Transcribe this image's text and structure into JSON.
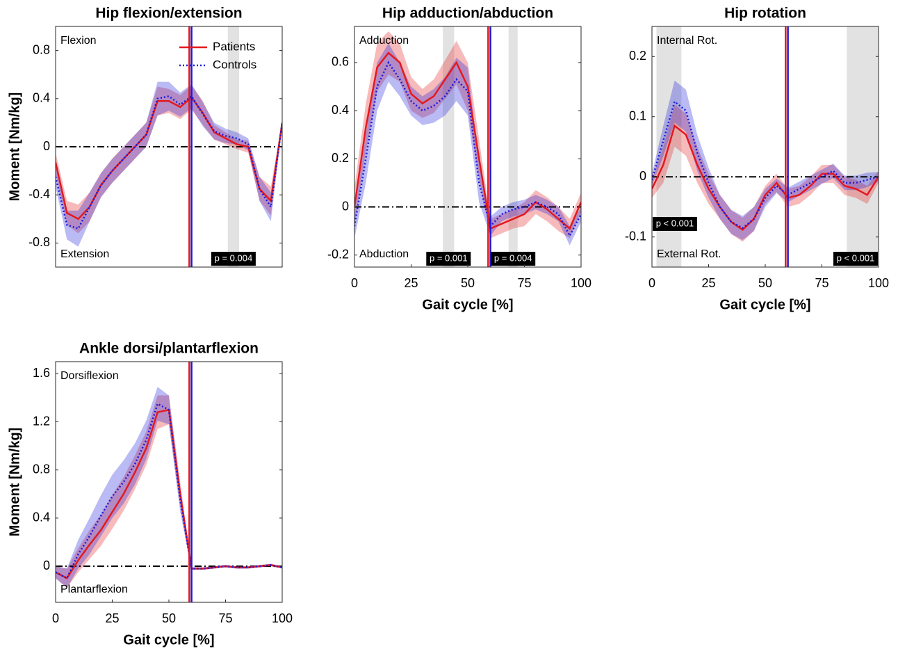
{
  "chart_data": [
    {
      "type": "line",
      "title": "Hip flexion/extension",
      "ylabel": "Moment [Nm/kg]",
      "annotations": {
        "top": "Flexion",
        "bottom": "Extension"
      },
      "xlim": [
        0,
        100
      ],
      "ylim": [
        -1,
        1
      ],
      "yticks": [
        0.8,
        0.4,
        0,
        -0.4,
        -0.8
      ],
      "hline": 0,
      "legend": "upper right",
      "x": [
        0,
        5,
        10,
        15,
        20,
        25,
        30,
        35,
        40,
        45,
        50,
        55,
        60,
        65,
        70,
        75,
        80,
        85,
        90,
        95,
        100
      ],
      "series": [
        {
          "name": "Patients",
          "color": "#e3191f",
          "style": "solid",
          "values": [
            -0.13,
            -0.55,
            -0.6,
            -0.5,
            -0.32,
            -0.2,
            -0.1,
            0.0,
            0.1,
            0.38,
            0.38,
            0.33,
            0.41,
            0.28,
            0.12,
            0.07,
            0.02,
            0.0,
            -0.35,
            -0.45,
            0.2
          ],
          "sd": [
            0.08,
            0.1,
            0.12,
            0.12,
            0.1,
            0.1,
            0.1,
            0.1,
            0.1,
            0.12,
            0.1,
            0.1,
            0.1,
            0.1,
            0.06,
            0.05,
            0.04,
            0.05,
            0.1,
            0.12,
            0.02
          ]
        },
        {
          "name": "Controls",
          "color": "#1a1ad9",
          "style": "dotted",
          "values": [
            -0.25,
            -0.65,
            -0.68,
            -0.5,
            -0.32,
            -0.2,
            -0.1,
            0.0,
            0.1,
            0.4,
            0.42,
            0.35,
            0.42,
            0.27,
            0.13,
            0.09,
            0.07,
            0.02,
            -0.35,
            -0.5,
            0.2
          ],
          "sd": [
            0.08,
            0.12,
            0.15,
            0.12,
            0.1,
            0.1,
            0.1,
            0.1,
            0.1,
            0.14,
            0.12,
            0.1,
            0.1,
            0.1,
            0.07,
            0.06,
            0.05,
            0.05,
            0.1,
            0.12,
            0.02
          ]
        }
      ],
      "vlines": [
        {
          "value": 59,
          "color": "#e3191f"
        },
        {
          "value": 60,
          "color": "#1a1ad9"
        }
      ],
      "sig_regions": [
        {
          "x": [
            76,
            81
          ],
          "label": "p = 0.004"
        }
      ]
    },
    {
      "type": "line",
      "title": "Hip adduction/abduction",
      "xlabel": "Gait cycle [%]",
      "annotations": {
        "top": "Adduction",
        "bottom": "Abduction"
      },
      "xlim": [
        0,
        100
      ],
      "xticks": [
        0,
        25,
        50,
        75,
        100
      ],
      "ylim": [
        -0.25,
        0.75
      ],
      "yticks": [
        0.6,
        0.4,
        0.2,
        0,
        -0.2
      ],
      "hline": 0,
      "x": [
        0,
        5,
        10,
        15,
        20,
        25,
        30,
        35,
        40,
        45,
        50,
        55,
        60,
        65,
        70,
        75,
        80,
        85,
        90,
        95,
        100
      ],
      "series": [
        {
          "color": "#e3191f",
          "style": "solid",
          "values": [
            0.0,
            0.33,
            0.58,
            0.64,
            0.6,
            0.47,
            0.43,
            0.46,
            0.53,
            0.6,
            0.5,
            0.2,
            -0.09,
            -0.07,
            -0.05,
            -0.03,
            0.02,
            -0.01,
            -0.05,
            -0.09,
            0.02
          ],
          "sd": [
            0.08,
            0.1,
            0.1,
            0.09,
            0.08,
            0.07,
            0.06,
            0.07,
            0.08,
            0.09,
            0.1,
            0.08,
            0.04,
            0.04,
            0.04,
            0.05,
            0.05,
            0.05,
            0.05,
            0.04,
            0.04
          ]
        },
        {
          "color": "#1a1ad9",
          "style": "dotted",
          "values": [
            -0.08,
            0.2,
            0.5,
            0.6,
            0.53,
            0.44,
            0.4,
            0.42,
            0.46,
            0.53,
            0.48,
            0.1,
            -0.08,
            -0.03,
            -0.01,
            0.0,
            0.02,
            0.0,
            -0.03,
            -0.12,
            -0.03
          ],
          "sd": [
            0.05,
            0.1,
            0.1,
            0.08,
            0.07,
            0.06,
            0.06,
            0.07,
            0.08,
            0.09,
            0.1,
            0.08,
            0.04,
            0.03,
            0.03,
            0.03,
            0.03,
            0.03,
            0.03,
            0.04,
            0.03
          ]
        }
      ],
      "vlines": [
        {
          "value": 59,
          "color": "#e3191f"
        },
        {
          "value": 60,
          "color": "#1a1ad9"
        }
      ],
      "sig_regions": [
        {
          "x": [
            39,
            44
          ],
          "label": "p = 0.001"
        },
        {
          "x": [
            68,
            72
          ],
          "label": "p = 0.004"
        }
      ]
    },
    {
      "type": "line",
      "title": "Hip rotation",
      "xlabel": "Gait cycle [%]",
      "annotations": {
        "top": "Internal Rot.",
        "bottom": "External Rot."
      },
      "xlim": [
        0,
        100
      ],
      "xticks": [
        0,
        25,
        50,
        75,
        100
      ],
      "ylim": [
        -0.15,
        0.25
      ],
      "yticks": [
        0.2,
        0.1,
        0,
        -0.1
      ],
      "hline": 0,
      "x": [
        0,
        5,
        10,
        15,
        20,
        25,
        30,
        35,
        40,
        45,
        50,
        55,
        60,
        65,
        70,
        75,
        80,
        85,
        90,
        95,
        100
      ],
      "series": [
        {
          "color": "#e3191f",
          "style": "solid",
          "values": [
            -0.02,
            0.02,
            0.085,
            0.07,
            0.02,
            -0.02,
            -0.05,
            -0.075,
            -0.088,
            -0.07,
            -0.03,
            -0.01,
            -0.035,
            -0.03,
            -0.015,
            0.005,
            0.005,
            -0.015,
            -0.02,
            -0.03,
            0.0
          ],
          "sd": [
            0.015,
            0.03,
            0.035,
            0.035,
            0.03,
            0.025,
            0.02,
            0.02,
            0.02,
            0.02,
            0.015,
            0.015,
            0.015,
            0.015,
            0.015,
            0.015,
            0.015,
            0.015,
            0.015,
            0.015,
            0.01
          ]
        },
        {
          "color": "#1a1ad9",
          "style": "dotted",
          "values": [
            -0.005,
            0.06,
            0.125,
            0.11,
            0.04,
            -0.01,
            -0.05,
            -0.075,
            -0.085,
            -0.07,
            -0.035,
            -0.015,
            -0.03,
            -0.02,
            -0.01,
            0.0,
            0.01,
            -0.01,
            -0.01,
            -0.005,
            0.0
          ],
          "sd": [
            0.01,
            0.025,
            0.035,
            0.035,
            0.03,
            0.025,
            0.02,
            0.02,
            0.02,
            0.02,
            0.015,
            0.012,
            0.012,
            0.012,
            0.012,
            0.012,
            0.012,
            0.012,
            0.012,
            0.012,
            0.008
          ]
        }
      ],
      "vlines": [
        {
          "value": 59,
          "color": "#e3191f"
        },
        {
          "value": 60,
          "color": "#1a1ad9"
        }
      ],
      "sig_regions": [
        {
          "x": [
            2,
            13
          ],
          "label": "p < 0.001"
        },
        {
          "x": [
            86,
            100
          ],
          "label": "p < 0.001"
        }
      ]
    },
    {
      "type": "line",
      "title": "Ankle dorsi/plantarflexion",
      "xlabel": "Gait cycle [%]",
      "ylabel": "Moment [Nm/kg]",
      "annotations": {
        "top": "Dorsiflexion",
        "bottom": "Plantarflexion"
      },
      "xlim": [
        0,
        100
      ],
      "xticks": [
        0,
        25,
        50,
        75,
        100
      ],
      "ylim": [
        -0.3,
        1.7
      ],
      "yticks": [
        1.6,
        1.2,
        0.8,
        0.4,
        0
      ],
      "hline": 0,
      "x": [
        0,
        5,
        10,
        15,
        20,
        25,
        30,
        35,
        40,
        45,
        50,
        55,
        60,
        65,
        70,
        75,
        80,
        85,
        90,
        95,
        100
      ],
      "series": [
        {
          "color": "#e3191f",
          "style": "solid",
          "values": [
            -0.05,
            -0.1,
            0.05,
            0.18,
            0.3,
            0.45,
            0.6,
            0.78,
            0.98,
            1.28,
            1.3,
            0.6,
            -0.02,
            -0.02,
            -0.01,
            0.0,
            -0.01,
            -0.01,
            0.0,
            0.01,
            -0.01
          ],
          "sd": [
            0.05,
            0.08,
            0.1,
            0.12,
            0.13,
            0.14,
            0.14,
            0.14,
            0.14,
            0.14,
            0.12,
            0.1,
            0.01,
            0.01,
            0.01,
            0.01,
            0.01,
            0.01,
            0.01,
            0.01,
            0.01
          ]
        },
        {
          "color": "#1a1ad9",
          "style": "dotted",
          "values": [
            -0.05,
            -0.1,
            0.1,
            0.25,
            0.42,
            0.58,
            0.7,
            0.85,
            1.05,
            1.35,
            1.3,
            0.55,
            -0.02,
            -0.02,
            -0.01,
            0.0,
            -0.01,
            -0.01,
            0.0,
            0.01,
            -0.01
          ],
          "sd": [
            0.05,
            0.08,
            0.12,
            0.15,
            0.17,
            0.18,
            0.18,
            0.17,
            0.16,
            0.14,
            0.12,
            0.1,
            0.01,
            0.01,
            0.01,
            0.01,
            0.01,
            0.01,
            0.01,
            0.01,
            0.01
          ]
        }
      ],
      "vlines": [
        {
          "value": 59,
          "color": "#e3191f"
        },
        {
          "value": 60,
          "color": "#1a1ad9"
        }
      ]
    }
  ]
}
